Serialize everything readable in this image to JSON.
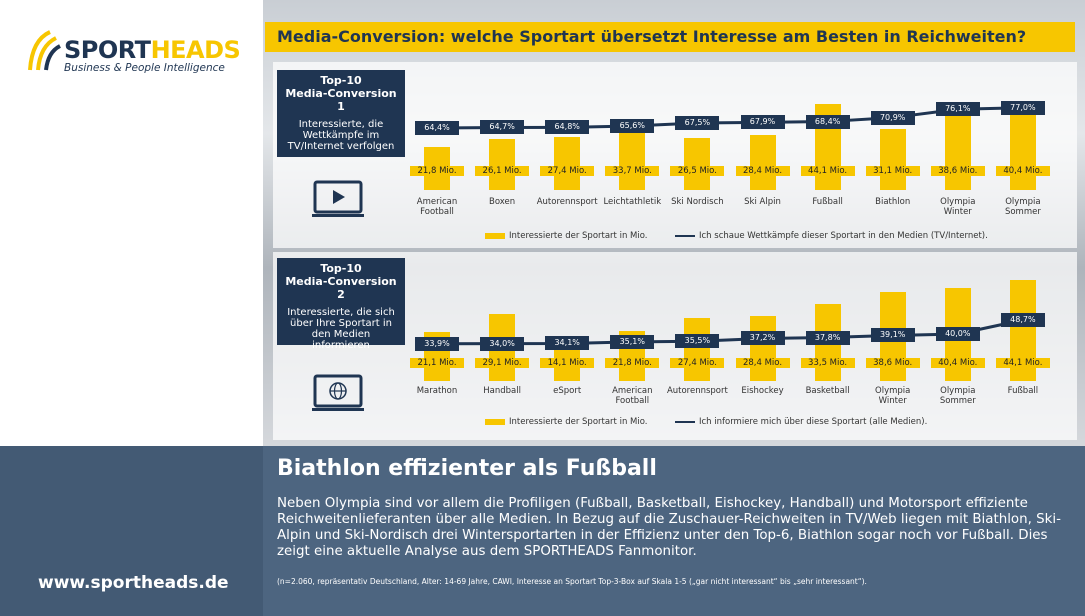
{
  "logo": {
    "name_part1": "SPORT",
    "name_part2": "HEADS",
    "tagline": "Business & People Intelligence"
  },
  "header": {
    "title": "Media-Conversion: welche Sportart übersetzt Interesse am Besten in Reichweiten?"
  },
  "chart_data": [
    {
      "type": "combo",
      "title": "Top-10\nMedia-Conversion 1",
      "subtitle": "Interessierte, die Wettkämpfe im TV/Internet verfolgen",
      "categories": [
        "American Football",
        "Boxen",
        "Autorennsport",
        "Leichtathletik",
        "Ski Nordisch",
        "Ski Alpin",
        "Fußball",
        "Biathlon",
        "Olympia Winter",
        "Olympia Sommer"
      ],
      "series": [
        {
          "name": "Interessierte der Sportart in Mio.",
          "type": "bar",
          "color": "#f7c600",
          "values": [
            21.8,
            26.1,
            27.4,
            33.7,
            26.5,
            28.4,
            44.1,
            31.1,
            38.6,
            40.4
          ],
          "value_labels": [
            "21,8 Mio.",
            "26,1 Mio.",
            "27,4 Mio.",
            "33,7 Mio.",
            "26,5 Mio.",
            "28,4 Mio.",
            "44,1 Mio.",
            "31,1 Mio.",
            "38,6 Mio.",
            "40,4 Mio."
          ]
        },
        {
          "name": "Ich schaue Wettkämpfe dieser Sportart in den Medien (TV/Internet).",
          "type": "line",
          "color": "#1f3552",
          "values": [
            64.4,
            64.7,
            64.8,
            65.6,
            67.5,
            67.9,
            68.4,
            70.9,
            76.1,
            77.0
          ],
          "value_labels": [
            "64,4%",
            "64,7%",
            "64,8%",
            "65,6%",
            "67,5%",
            "67,9%",
            "68,4%",
            "70,9%",
            "76,1%",
            "77,0%"
          ]
        }
      ]
    },
    {
      "type": "combo",
      "title": "Top-10\nMedia-Conversion 2",
      "subtitle": "Interessierte, die sich über Ihre Sportart in den Medien informieren",
      "categories": [
        "Marathon",
        "Handball",
        "eSport",
        "American Football",
        "Autorennsport",
        "Eishockey",
        "Basketball",
        "Olympia Winter",
        "Olympia Sommer",
        "Fußball"
      ],
      "series": [
        {
          "name": "Interessierte der Sportart in Mio.",
          "type": "bar",
          "color": "#f7c600",
          "values": [
            21.1,
            29.1,
            14.1,
            21.8,
            27.4,
            28.4,
            33.5,
            38.6,
            40.4,
            44.1
          ],
          "value_labels": [
            "21,1 Mio.",
            "29,1 Mio.",
            "14,1 Mio.",
            "21,8 Mio.",
            "27,4 Mio.",
            "28,4 Mio.",
            "33,5 Mio.",
            "38,6 Mio.",
            "40,4 Mio.",
            "44,1 Mio."
          ]
        },
        {
          "name": "Ich informiere mich über diese Sportart (alle Medien).",
          "type": "line",
          "color": "#1f3552",
          "values": [
            33.9,
            34.0,
            34.1,
            35.1,
            35.5,
            37.2,
            37.8,
            39.1,
            40.0,
            48.7
          ],
          "value_labels": [
            "33,9%",
            "34,0%",
            "34,1%",
            "35,1%",
            "35,5%",
            "37,2%",
            "37,8%",
            "39,1%",
            "40,0%",
            "48,7%"
          ]
        }
      ]
    }
  ],
  "footer": {
    "headline": "Biathlon effizienter als Fußball",
    "body": "Neben Olympia sind vor allem die Profiligen (Fußball, Basketball, Eishockey, Handball) und Motorsport effiziente Reichweitenlieferanten über alle Medien. In Bezug auf die Zuschauer-Reichweiten in TV/Web liegen mit Biathlon, Ski-Alpin und Ski-Nordisch drei Wintersportarten in der Effizienz unter den Top-6, Biathlon sogar noch vor Fußball. Dies zeigt eine aktuelle Analyse aus dem SPORTHEADS Fanmonitor.",
    "note": "(n=2.060, repräsentativ Deutschland, Alter: 14-69 Jahre, CAWI, Interesse an Sportart Top-3-Box auf Skala 1-5 („gar nicht interessant“ bis „sehr interessant“).",
    "website": "www.sportheads.de"
  }
}
